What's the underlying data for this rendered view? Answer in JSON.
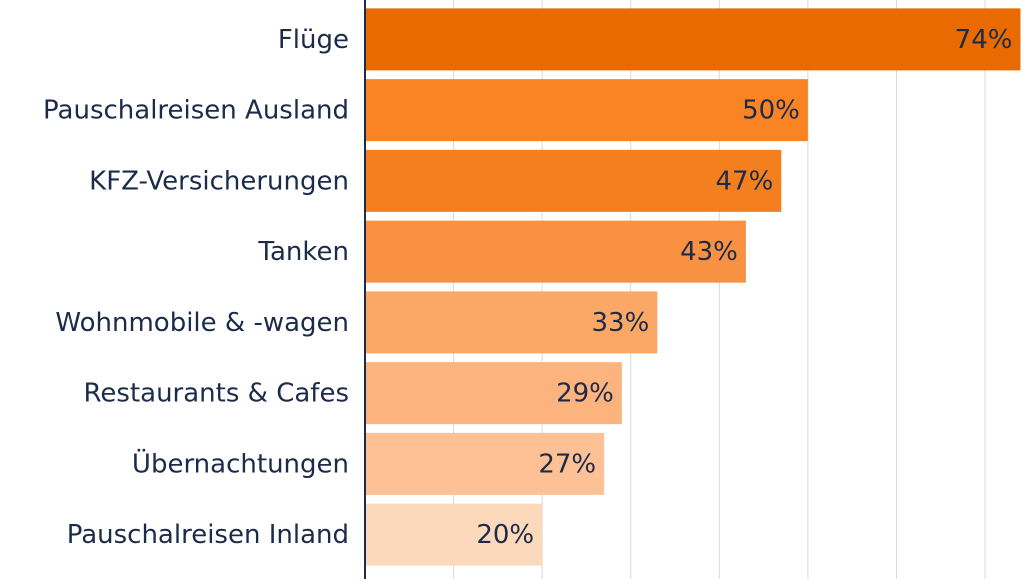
{
  "chart_data": {
    "type": "bar",
    "orientation": "horizontal",
    "categories": [
      "Flüge",
      "Pauschalreisen Ausland",
      "KFZ-Versicherungen",
      "Tanken",
      "Wohnmobile & -wagen",
      "Restaurants & Cafes",
      "Übernachtungen",
      "Pauschalreisen Inland"
    ],
    "values": [
      74,
      50,
      47,
      43,
      33,
      29,
      27,
      20
    ],
    "value_labels": [
      "74%",
      "50%",
      "47%",
      "43%",
      "33%",
      "29%",
      "27%",
      "20%"
    ],
    "colors": [
      "#e96a00",
      "#fa8424",
      "#f47f1e",
      "#f89142",
      "#fba866",
      "#fcb37e",
      "#fdc195",
      "#fdd9bb"
    ],
    "xlim": [
      0,
      74.4
    ],
    "xticks": [
      0,
      10,
      20,
      30,
      40,
      50,
      60,
      70
    ],
    "grid": true
  }
}
